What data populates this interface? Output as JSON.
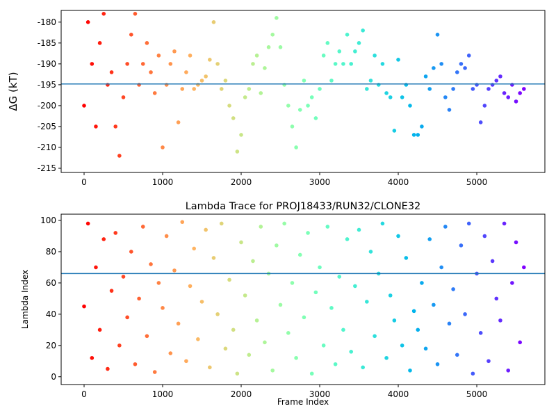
{
  "chart_data": [
    {
      "type": "scatter",
      "y_label": "ΔG (kT)",
      "colormap": "rainbow_r",
      "hline_color": "#1f77b4",
      "hline": -194.8,
      "x": [
        0,
        50,
        100,
        150,
        200,
        250,
        300,
        350,
        400,
        450,
        500,
        550,
        600,
        650,
        700,
        750,
        800,
        850,
        900,
        950,
        1000,
        1050,
        1100,
        1150,
        1200,
        1250,
        1300,
        1350,
        1400,
        1450,
        1500,
        1550,
        1600,
        1650,
        1700,
        1750,
        1800,
        1850,
        1900,
        1950,
        2000,
        2050,
        2100,
        2150,
        2200,
        2250,
        2300,
        2350,
        2400,
        2450,
        2500,
        2550,
        2600,
        2650,
        2700,
        2750,
        2800,
        2850,
        2900,
        2950,
        3000,
        3050,
        3100,
        3150,
        3200,
        3250,
        3300,
        3350,
        3400,
        3450,
        3500,
        3550,
        3600,
        3650,
        3700,
        3750,
        3800,
        3850,
        3900,
        3950,
        4000,
        4050,
        4100,
        4150,
        4200,
        4250,
        4300,
        4350,
        4400,
        4450,
        4500,
        4550,
        4600,
        4650,
        4700,
        4750,
        4800,
        4850,
        4900,
        4950,
        5000,
        5050,
        5100,
        5150,
        5200,
        5250,
        5300,
        5350,
        5400,
        5450,
        5500,
        5550,
        5600
      ],
      "values": [
        -200,
        -180,
        -190,
        -205,
        -185,
        -178,
        -195,
        -192,
        -205,
        -212,
        -198,
        -190,
        -183,
        -178,
        -195,
        -190,
        -185,
        -192,
        -197,
        -188,
        -210,
        -195,
        -190,
        -187,
        -204,
        -196,
        -192,
        -188,
        -196,
        -195,
        -194,
        -193,
        -189,
        -180,
        -190,
        -196,
        -194,
        -200,
        -203,
        -211,
        -207,
        -198,
        -196,
        -190,
        -188,
        -197,
        -191,
        -186,
        -183,
        -179,
        -186,
        -195,
        -200,
        -205,
        -210,
        -201,
        -194,
        -200,
        -198,
        -203,
        -196,
        -188,
        -185,
        -194,
        -190,
        -187,
        -190,
        -183,
        -190,
        -187,
        -185,
        -182,
        -196,
        -194,
        -188,
        -195,
        -190,
        -197,
        -198,
        -206,
        -189,
        -198,
        -195,
        -200,
        -207,
        -207,
        -205,
        -193,
        -196,
        -191,
        -183,
        -190,
        -198,
        -201,
        -196,
        -192,
        -190,
        -191,
        -188,
        -196,
        -195,
        -204,
        -200,
        -196,
        -195,
        -194,
        -193,
        -197,
        -198,
        -195,
        -199,
        -197,
        -196
      ],
      "xlim": [
        -292,
        5867
      ],
      "ylim": [
        -216,
        -177.2
      ],
      "xticks": [
        0,
        1000,
        2000,
        3000,
        4000,
        5000
      ],
      "yticks": [
        -215,
        -210,
        -205,
        -200,
        -195,
        -190,
        -185,
        -180
      ]
    },
    {
      "type": "scatter",
      "title": "Lambda Trace for PROJ18433/RUN32/CLONE32",
      "x_label": "Frame Index",
      "y_label": "Lambda Index",
      "colormap": "rainbow_r",
      "hline_color": "#1f77b4",
      "hline": 66,
      "x": [
        0,
        50,
        100,
        150,
        200,
        250,
        300,
        350,
        400,
        450,
        500,
        550,
        600,
        650,
        700,
        750,
        800,
        850,
        900,
        950,
        1000,
        1050,
        1100,
        1150,
        1200,
        1250,
        1300,
        1350,
        1400,
        1450,
        1500,
        1550,
        1600,
        1650,
        1700,
        1750,
        1800,
        1850,
        1900,
        1950,
        2000,
        2050,
        2100,
        2150,
        2200,
        2250,
        2300,
        2350,
        2400,
        2450,
        2500,
        2550,
        2600,
        2650,
        2700,
        2750,
        2800,
        2850,
        2900,
        2950,
        3000,
        3050,
        3100,
        3150,
        3200,
        3250,
        3300,
        3350,
        3400,
        3450,
        3500,
        3550,
        3600,
        3650,
        3700,
        3750,
        3800,
        3850,
        3900,
        3950,
        4000,
        4050,
        4100,
        4150,
        4200,
        4250,
        4300,
        4350,
        4400,
        4450,
        4500,
        4550,
        4600,
        4650,
        4700,
        4750,
        4800,
        4850,
        4900,
        4950,
        5000,
        5050,
        5100,
        5150,
        5200,
        5250,
        5300,
        5350,
        5400,
        5450,
        5500,
        5550,
        5600
      ],
      "values": [
        45,
        98,
        12,
        70,
        30,
        88,
        5,
        55,
        92,
        20,
        64,
        38,
        80,
        8,
        50,
        96,
        26,
        72,
        3,
        60,
        44,
        90,
        15,
        68,
        34,
        99,
        10,
        58,
        82,
        24,
        48,
        94,
        6,
        76,
        40,
        98,
        18,
        62,
        30,
        2,
        86,
        52,
        14,
        74,
        36,
        96,
        22,
        66,
        4,
        84,
        46,
        98,
        28,
        60,
        12,
        78,
        38,
        92,
        2,
        54,
        70,
        20,
        96,
        44,
        8,
        64,
        30,
        88,
        16,
        58,
        94,
        6,
        48,
        80,
        26,
        66,
        98,
        12,
        52,
        36,
        90,
        20,
        76,
        4,
        42,
        30,
        60,
        18,
        88,
        46,
        8,
        70,
        96,
        34,
        56,
        14,
        84,
        40,
        98,
        2,
        66,
        28,
        90,
        10,
        74,
        50,
        36,
        98,
        4,
        60,
        86,
        22,
        70
      ],
      "xlim": [
        -292,
        5867
      ],
      "ylim": [
        -5,
        104
      ],
      "xticks": [
        0,
        1000,
        2000,
        3000,
        4000,
        5000
      ],
      "yticks": [
        0,
        20,
        40,
        60,
        80,
        100
      ]
    }
  ]
}
